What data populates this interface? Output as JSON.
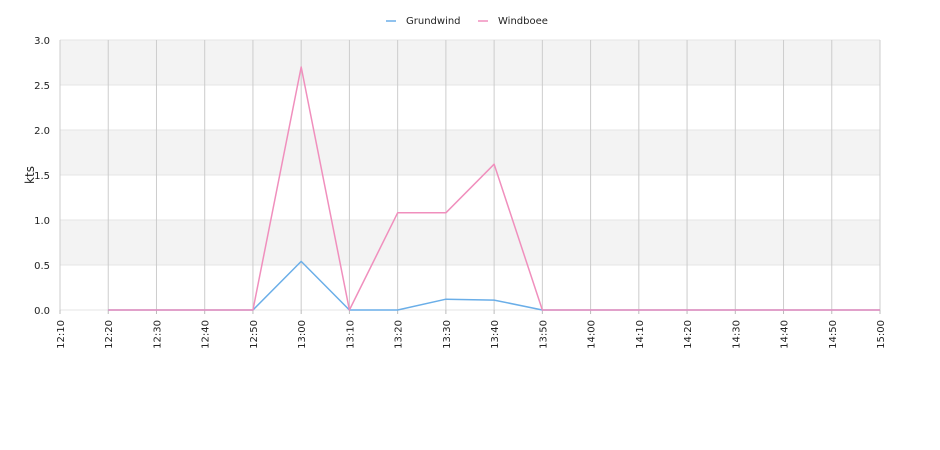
{
  "chart_data": {
    "type": "line",
    "title": "",
    "xlabel": "",
    "ylabel": "kts",
    "ylim": [
      0,
      3.0
    ],
    "yticks": [
      "0.0",
      "0.5",
      "1.0",
      "1.5",
      "2.0",
      "2.5",
      "3.0"
    ],
    "x": [
      "12:10",
      "12:20",
      "12:30",
      "12:40",
      "12:50",
      "13:00",
      "13:10",
      "13:20",
      "13:30",
      "13:40",
      "13:50",
      "14:00",
      "14:10",
      "14:20",
      "14:30",
      "14:40",
      "14:50",
      "15:00"
    ],
    "grid": true,
    "legend_position": "top-center",
    "series": [
      {
        "name": "Grundwind",
        "color": "#6aaee8",
        "values": [
          null,
          0,
          0,
          0,
          0,
          0.54,
          0,
          0,
          0.12,
          0.11,
          0,
          0,
          0,
          0,
          0,
          0,
          0,
          0
        ]
      },
      {
        "name": "Windboee",
        "color": "#f08fbd",
        "values": [
          null,
          0,
          0,
          0,
          0,
          2.7,
          0,
          1.08,
          1.08,
          1.62,
          0,
          0,
          0,
          0,
          0,
          0,
          0,
          0
        ]
      }
    ]
  }
}
